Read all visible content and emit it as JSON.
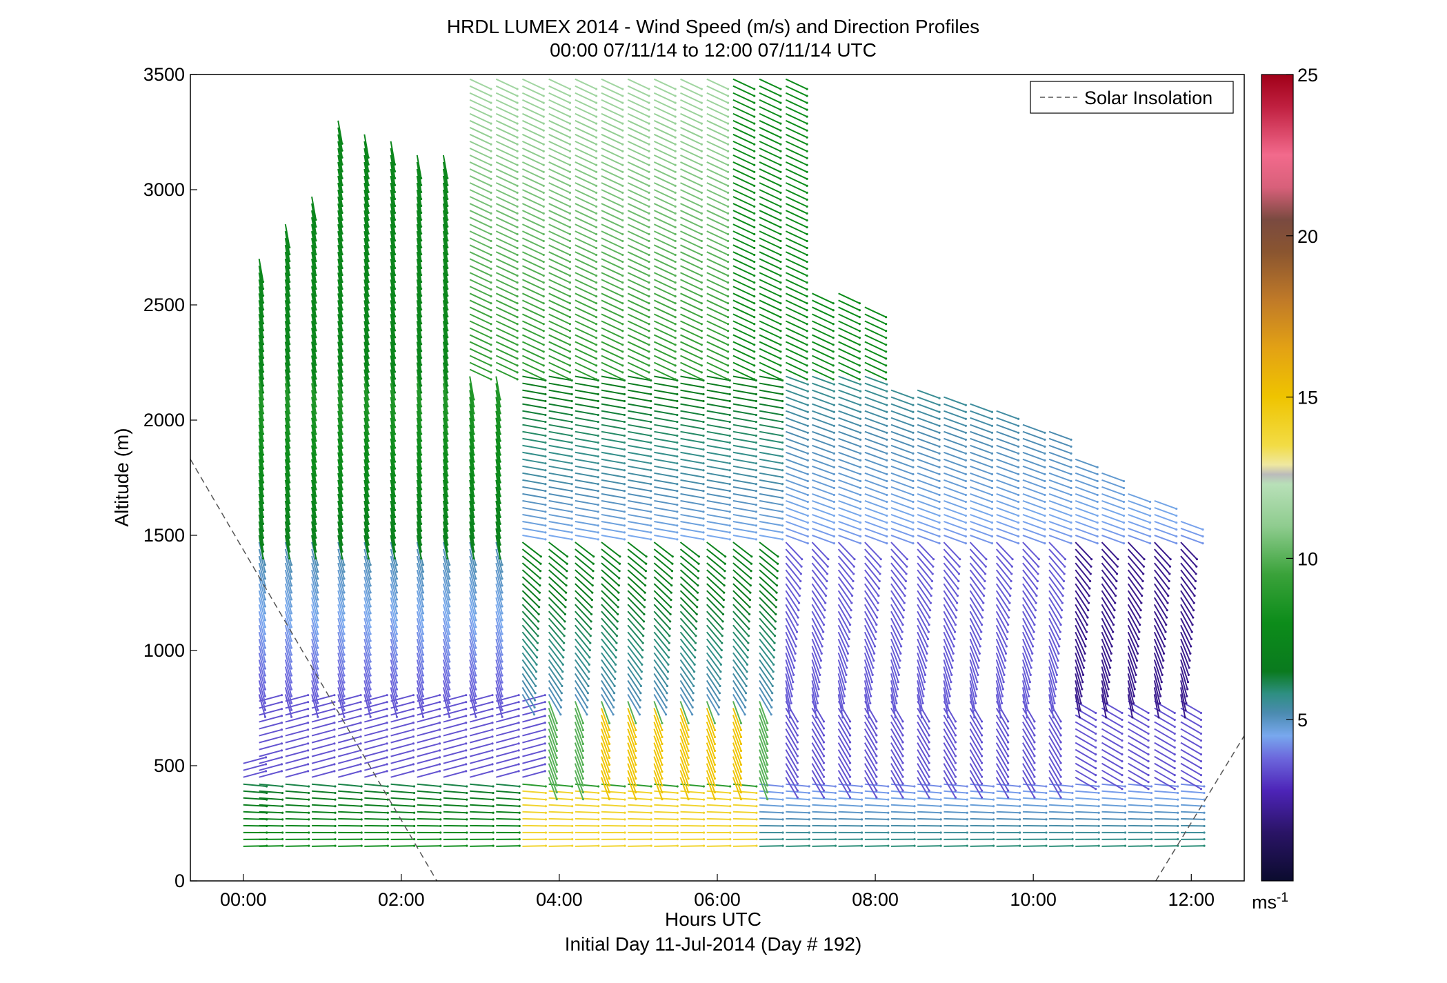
{
  "chart_data": {
    "type": "wind-barb-profile",
    "title": "HRDL LUMEX 2014 - Wind Speed (m/s) and Direction Profiles",
    "subtitle": "00:00 07/11/14 to 12:00 07/11/14  UTC",
    "xlabel": "Hours UTC",
    "xlabel2": "Initial Day 11-Jul-2014 (Day # 192)",
    "ylabel": "Altitude (m)",
    "xticks": [
      {
        "label": "00:00",
        "hour": 0
      },
      {
        "label": "02:00",
        "hour": 2
      },
      {
        "label": "04:00",
        "hour": 4
      },
      {
        "label": "06:00",
        "hour": 6
      },
      {
        "label": "08:00",
        "hour": 8
      },
      {
        "label": "10:00",
        "hour": 10
      },
      {
        "label": "12:00",
        "hour": 12
      }
    ],
    "xlim_hours": [
      -0.67,
      12.67
    ],
    "yticks": [
      0,
      500,
      1000,
      1500,
      2000,
      2500,
      3000,
      3500
    ],
    "ylim": [
      0,
      3500
    ],
    "legend": {
      "label": "Solar Insolation",
      "style": "dashed",
      "color": "#555555",
      "placement": "top-right"
    },
    "colorbar": {
      "unit_label": "ms",
      "unit_exp": "-1",
      "ticks": [
        5,
        10,
        15,
        20,
        25
      ],
      "range": [
        0,
        25
      ],
      "stops": [
        {
          "v": 0,
          "c": "#0b0b2e"
        },
        {
          "v": 1.5,
          "c": "#2a1466"
        },
        {
          "v": 2.8,
          "c": "#4d24b8"
        },
        {
          "v": 3.8,
          "c": "#6c67dc"
        },
        {
          "v": 4.5,
          "c": "#78a8ee"
        },
        {
          "v": 5.2,
          "c": "#4b8bb0"
        },
        {
          "v": 5.8,
          "c": "#2e8f82"
        },
        {
          "v": 6.5,
          "c": "#0a7a1e"
        },
        {
          "v": 8.0,
          "c": "#0c8c1a"
        },
        {
          "v": 9.5,
          "c": "#3aa23a"
        },
        {
          "v": 11.0,
          "c": "#8fcc8f"
        },
        {
          "v": 12.3,
          "c": "#b8e0b8"
        },
        {
          "v": 12.6,
          "c": "#bbbbbb"
        },
        {
          "v": 12.9,
          "c": "#efe8a0"
        },
        {
          "v": 13.5,
          "c": "#f2dc45"
        },
        {
          "v": 15.0,
          "c": "#efc400"
        },
        {
          "v": 16.5,
          "c": "#e3a214"
        },
        {
          "v": 18.0,
          "c": "#c07a28"
        },
        {
          "v": 19.5,
          "c": "#8a5530"
        },
        {
          "v": 20.5,
          "c": "#7a4a40"
        },
        {
          "v": 21.5,
          "c": "#d8607a"
        },
        {
          "v": 22.5,
          "c": "#f26a8c"
        },
        {
          "v": 24.0,
          "c": "#c02040"
        },
        {
          "v": 25,
          "c": "#a00018"
        }
      ]
    },
    "solar_insolation": [
      {
        "segment": "morning",
        "points": [
          [
            -0.67,
            1830
          ],
          [
            2.45,
            0
          ]
        ]
      },
      {
        "segment": "evening",
        "points": [
          [
            11.55,
            0
          ],
          [
            12.67,
            630
          ]
        ]
      }
    ],
    "profile_times_hours": [
      0.0,
      0.2,
      0.533,
      0.867,
      1.2,
      1.533,
      1.867,
      2.2,
      2.533,
      2.867,
      3.2,
      3.533,
      3.867,
      4.2,
      4.533,
      4.867,
      5.2,
      5.533,
      5.867,
      6.2,
      6.533,
      6.867,
      7.2,
      7.533,
      7.867,
      8.2,
      8.533,
      8.867,
      9.2,
      9.533,
      9.867,
      10.2,
      10.533,
      10.867,
      11.2,
      11.533,
      11.867
    ],
    "profile_top_altitudes": [
      520,
      2720,
      2850,
      2980,
      3300,
      3260,
      3220,
      3150,
      3150,
      3500,
      3500,
      3500,
      3500,
      3500,
      3500,
      3500,
      3500,
      3500,
      3500,
      3500,
      3500,
      3500,
      2570,
      2560,
      2500,
      2150,
      2130,
      2100,
      2080,
      2050,
      2000,
      1950,
      1840,
      1780,
      1690,
      1650,
      1560
    ],
    "profile_bottom_altitude": 150
  }
}
